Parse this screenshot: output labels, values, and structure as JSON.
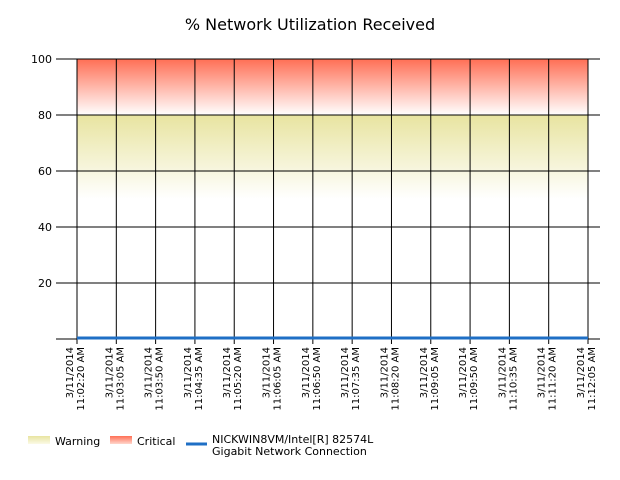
{
  "chart_data": {
    "type": "line",
    "title": "% Network Utilization Received",
    "xlabel": "",
    "ylabel": "",
    "ylim": [
      0,
      100
    ],
    "yticks": [
      20,
      40,
      60,
      80,
      100
    ],
    "grid": true,
    "x": [
      [
        "3/11/2014",
        "11:02:20 AM"
      ],
      [
        "3/11/2014",
        "11:03:05 AM"
      ],
      [
        "3/11/2014",
        "11:03:50 AM"
      ],
      [
        "3/11/2014",
        "11:04:35 AM"
      ],
      [
        "3/11/2014",
        "11:05:20 AM"
      ],
      [
        "3/11/2014",
        "11:06:05 AM"
      ],
      [
        "3/11/2014",
        "11:06:50 AM"
      ],
      [
        "3/11/2014",
        "11:07:35 AM"
      ],
      [
        "3/11/2014",
        "11:08:20 AM"
      ],
      [
        "3/11/2014",
        "11:09:05 AM"
      ],
      [
        "3/11/2014",
        "11:09:50 AM"
      ],
      [
        "3/11/2014",
        "11:10:35 AM"
      ],
      [
        "3/11/2014",
        "11:11:20 AM"
      ],
      [
        "3/11/2014",
        "11:12:05 AM"
      ]
    ],
    "series": [
      {
        "name": [
          "NICKWIN8VM/Intel[R] 82574L",
          "Gigabit Network Connection"
        ],
        "color": "#1f6fc5",
        "values": [
          0,
          0,
          0,
          0,
          0,
          0,
          0,
          0,
          0,
          0,
          0,
          0,
          0,
          0
        ]
      }
    ],
    "threshold_bands": [
      {
        "name": "Warning",
        "from": 50,
        "to": 80,
        "color": "#e8e4a0"
      },
      {
        "name": "Critical",
        "from": 80,
        "to": 100,
        "color": "#ff6f55"
      }
    ],
    "legend_position": "bottom-left"
  }
}
